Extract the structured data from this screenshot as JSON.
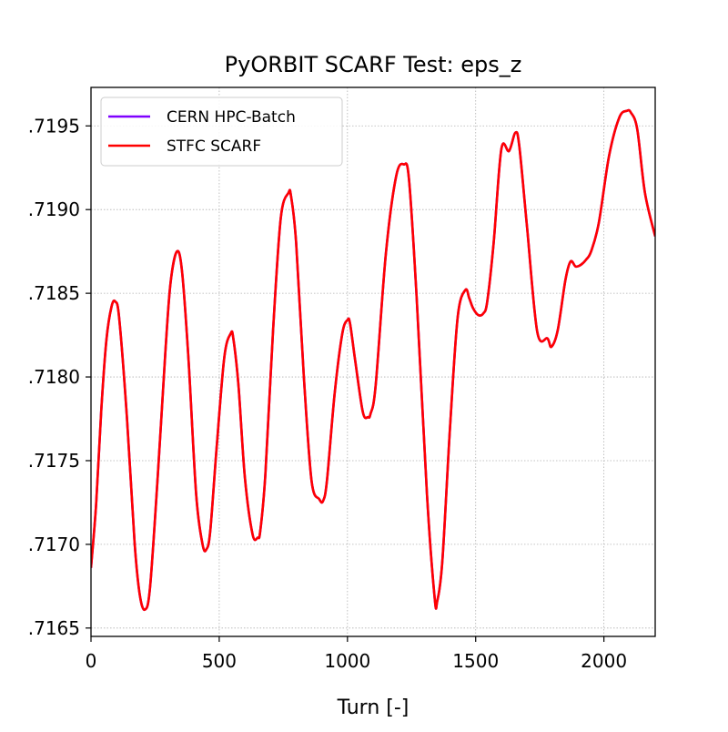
{
  "chart_data": {
    "type": "line",
    "title": "PyORBIT SCARF Test: eps_z",
    "xlabel": "Turn [-]",
    "ylabel": "",
    "xlim": [
      0,
      2200
    ],
    "ylim": [
      0.71645,
      0.71973
    ],
    "x_ticks": [
      0,
      500,
      1000,
      1500,
      2000
    ],
    "x_tick_labels": [
      "0",
      "500",
      "1000",
      "1500",
      "2000"
    ],
    "y_ticks": [
      0.7165,
      0.717,
      0.7175,
      0.718,
      0.7185,
      0.719,
      0.7195
    ],
    "y_tick_labels": [
      ".7165",
      ".7170",
      ".7175",
      ".7180",
      ".7185",
      ".7190",
      ".7195"
    ],
    "grid": true,
    "legend_position": "top-left",
    "x": [
      0,
      20,
      40,
      60,
      80,
      95,
      110,
      140,
      170,
      190,
      210,
      230,
      260,
      290,
      310,
      335,
      355,
      380,
      410,
      435,
      450,
      465,
      490,
      520,
      545,
      555,
      575,
      600,
      630,
      650,
      660,
      680,
      710,
      740,
      770,
      780,
      800,
      830,
      860,
      890,
      905,
      920,
      950,
      980,
      1000,
      1010,
      1030,
      1060,
      1080,
      1090,
      1110,
      1150,
      1190,
      1220,
      1240,
      1270,
      1310,
      1340,
      1350,
      1370,
      1400,
      1430,
      1460,
      1475,
      1490,
      1510,
      1530,
      1545,
      1570,
      1600,
      1630,
      1655,
      1670,
      1700,
      1740,
      1780,
      1795,
      1820,
      1850,
      1870,
      1890,
      1910,
      1930,
      1950,
      1980,
      2020,
      2060,
      2090,
      2105,
      2130,
      2160,
      2200
    ],
    "series": [
      {
        "name": "CERN HPC-Batch",
        "color": "#7f00ff",
        "values": [
          0.71686,
          0.71724,
          0.7178,
          0.71822,
          0.71842,
          0.71845,
          0.71835,
          0.71776,
          0.71701,
          0.7167,
          0.71661,
          0.71674,
          0.7174,
          0.71815,
          0.71856,
          0.71875,
          0.71863,
          0.71811,
          0.7173,
          0.717,
          0.71697,
          0.71708,
          0.71758,
          0.71812,
          0.71826,
          0.71823,
          0.71795,
          0.7174,
          0.71706,
          0.71704,
          0.71708,
          0.71742,
          0.71828,
          0.71895,
          0.7191,
          0.71908,
          0.7188,
          0.718,
          0.71738,
          0.71727,
          0.71726,
          0.71738,
          0.7179,
          0.71826,
          0.71834,
          0.71832,
          0.7181,
          0.71779,
          0.71776,
          0.71778,
          0.71795,
          0.71874,
          0.7192,
          0.71927,
          0.71918,
          0.71847,
          0.7173,
          0.71668,
          0.71666,
          0.7169,
          0.7177,
          0.71836,
          0.71852,
          0.71847,
          0.71841,
          0.71837,
          0.71838,
          0.71845,
          0.7188,
          0.71936,
          0.71935,
          0.71946,
          0.71938,
          0.7189,
          0.71827,
          0.71823,
          0.71818,
          0.71828,
          0.71858,
          0.71869,
          0.71866,
          0.71867,
          0.7187,
          0.71875,
          0.71892,
          0.71932,
          0.71955,
          0.71959,
          0.71958,
          0.71948,
          0.7191,
          0.71884
        ]
      },
      {
        "name": "STFC SCARF",
        "color": "#ff0000",
        "values": [
          0.71686,
          0.71724,
          0.7178,
          0.71822,
          0.71842,
          0.71845,
          0.71835,
          0.71776,
          0.71701,
          0.7167,
          0.71661,
          0.71674,
          0.7174,
          0.71815,
          0.71856,
          0.71875,
          0.71863,
          0.71811,
          0.7173,
          0.717,
          0.71697,
          0.71708,
          0.71758,
          0.71812,
          0.71826,
          0.71823,
          0.71795,
          0.7174,
          0.71706,
          0.71704,
          0.71708,
          0.71742,
          0.71828,
          0.71895,
          0.7191,
          0.71908,
          0.7188,
          0.718,
          0.71738,
          0.71727,
          0.71726,
          0.71738,
          0.7179,
          0.71826,
          0.71834,
          0.71832,
          0.7181,
          0.71779,
          0.71776,
          0.71778,
          0.71795,
          0.71874,
          0.7192,
          0.71927,
          0.71918,
          0.71847,
          0.7173,
          0.71668,
          0.71666,
          0.7169,
          0.7177,
          0.71836,
          0.71852,
          0.71847,
          0.71841,
          0.71837,
          0.71838,
          0.71845,
          0.7188,
          0.71936,
          0.71935,
          0.71946,
          0.71938,
          0.7189,
          0.71827,
          0.71823,
          0.71818,
          0.71828,
          0.71858,
          0.71869,
          0.71866,
          0.71867,
          0.7187,
          0.71875,
          0.71892,
          0.71932,
          0.71955,
          0.71959,
          0.71958,
          0.71948,
          0.7191,
          0.71884
        ]
      }
    ]
  }
}
